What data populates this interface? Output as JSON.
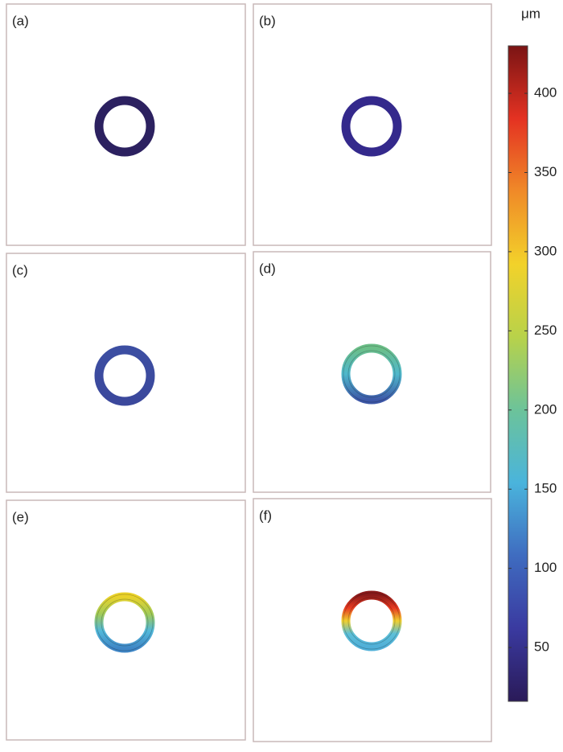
{
  "panels": [
    {
      "label": "(a)",
      "colors": [
        "#2c2160",
        "#2c2160"
      ]
    },
    {
      "label": "(b)",
      "colors": [
        "#34298c",
        "#34298c"
      ]
    },
    {
      "label": "(c)",
      "colors": [
        "#3c4ea2",
        "#3b489c"
      ]
    },
    {
      "label": "(d)",
      "colors": [
        "#6cbf88",
        "#4fb8cc",
        "#3d58a8"
      ]
    },
    {
      "label": "(e)",
      "colors": [
        "#ead22a",
        "#a2cc58",
        "#52b8da",
        "#3f86c6"
      ]
    },
    {
      "label": "(f)",
      "colors": [
        "#8a1a1a",
        "#e83a20",
        "#f0d030",
        "#5cc0d8",
        "#50b0d8"
      ]
    }
  ],
  "colorbar": {
    "unit": "μm",
    "range": [
      16,
      430
    ],
    "ticks": [
      50,
      100,
      150,
      200,
      250,
      300,
      350,
      400
    ],
    "colors": [
      "#2a1a58",
      "#3a3aa0",
      "#3f6cc0",
      "#4ab4dc",
      "#6cc39a",
      "#b8d24a",
      "#f2d22a",
      "#f08a28",
      "#e43222",
      "#7a1414"
    ]
  }
}
